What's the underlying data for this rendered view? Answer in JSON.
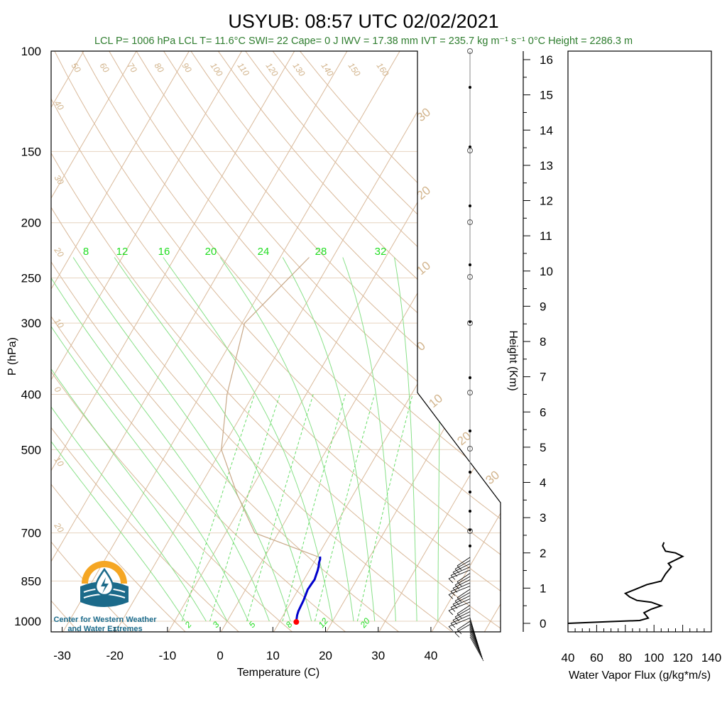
{
  "title": "USYUB: 08:57 UTC 02/02/2021",
  "stats_line": "LCL P= 1006 hPa  LCL T= 11.6°C  SWI= 22  Cape= 0 J  IWV = 17.38 mm  IVT = 235.7 kg m⁻¹ s⁻¹  0°C Height = 2286.3 m",
  "logo": {
    "line1": "Center for Western Weather",
    "line2": "and Water Extremes"
  },
  "colors": {
    "temperature": "#0000cc",
    "surface_marker": "#ff0000",
    "background_lines": "#d9b99a",
    "moist_adiabats": "#88e088",
    "stats_text": "#2e7d2e",
    "logo_orange": "#f5a623",
    "logo_blue": "#1b6a8a"
  },
  "chart_data": [
    {
      "type": "line",
      "chart": "skew-T log-P",
      "xlabel": "Temperature (C)",
      "ylabel": "P (hPa)",
      "x_ticks": [
        "-30",
        "-20",
        "-10",
        "0",
        "10",
        "20",
        "30",
        "40"
      ],
      "y_ticks": [
        "100",
        "150",
        "200",
        "250",
        "300",
        "400",
        "500",
        "700",
        "850",
        "1000"
      ],
      "xlim": [
        -34,
        51
      ],
      "ylim": [
        1050,
        100
      ],
      "y_scale": "log",
      "skewed_isotherm_labels": [
        "50",
        "60",
        "70",
        "80",
        "90",
        "100",
        "110",
        "120",
        "130",
        "140",
        "150",
        "160",
        "40",
        "30",
        "20",
        "10",
        "0",
        "10",
        "20",
        "30",
        "20",
        "10",
        "0",
        "10",
        "20",
        "30"
      ],
      "moist_adiabat_labels": [
        "8",
        "12",
        "16",
        "20",
        "24",
        "28",
        "32"
      ],
      "mixing_ratio_labels": [
        "2",
        "3",
        "5",
        "8",
        "12",
        "20"
      ],
      "series": [
        {
          "points": [
            [
              1002,
              13.2
            ],
            [
              990,
              12.9
            ],
            [
              975,
              12.6
            ],
            [
              960,
              12.4
            ],
            [
              940,
              12.3
            ],
            [
              920,
              12.2
            ],
            [
              900,
              12.0
            ],
            [
              880,
              11.8
            ],
            [
              860,
              11.9
            ],
            [
              845,
              12.0
            ],
            [
              830,
              11.8
            ],
            [
              815,
              11.6
            ],
            [
              800,
              11.3
            ],
            [
              790,
              11.0
            ],
            [
              778,
              10.8
            ],
            [
              770,
              10.5
            ]
          ]
        },
        {
          "points": [
            [
              230,
              -24.5
            ],
            [
              300,
              -29.5
            ],
            [
              400,
              -25.0
            ],
            [
              500,
              -20.0
            ],
            [
              600,
              -12.0
            ],
            [
              700,
              -4.5
            ],
            [
              770,
              10.0
            ]
          ]
        }
      ],
      "surface_marker": [
        1003,
        13.2
      ]
    },
    {
      "type": "line",
      "ylabel": "Height (Km)",
      "xlabel": "Water Vapor Flux (g/kg*m/s)",
      "x_ticks": [
        "40",
        "60",
        "80",
        "100",
        "120",
        "140"
      ],
      "y_ticks": [
        "0",
        "1",
        "2",
        "3",
        "4",
        "5",
        "6",
        "7",
        "8",
        "9",
        "10",
        "11",
        "12",
        "13",
        "14",
        "15",
        "16"
      ],
      "xlim": [
        40,
        140
      ],
      "ylim": [
        -0.2,
        16.3
      ],
      "series": [
        {
          "points": [
            [
              40,
              0.0
            ],
            [
              70,
              0.05
            ],
            [
              90,
              0.08
            ],
            [
              96,
              0.15
            ],
            [
              93,
              0.3
            ],
            [
              98,
              0.4
            ],
            [
              105,
              0.5
            ],
            [
              98,
              0.6
            ],
            [
              88,
              0.65
            ],
            [
              83,
              0.75
            ],
            [
              80,
              0.85
            ],
            [
              86,
              0.95
            ],
            [
              95,
              1.1
            ],
            [
              105,
              1.2
            ],
            [
              108,
              1.4
            ],
            [
              112,
              1.6
            ],
            [
              110,
              1.7
            ],
            [
              115,
              1.8
            ],
            [
              120,
              1.9
            ],
            [
              115,
              2.0
            ],
            [
              108,
              2.05
            ],
            [
              106,
              2.2
            ],
            [
              107,
              2.3
            ]
          ]
        }
      ]
    }
  ]
}
